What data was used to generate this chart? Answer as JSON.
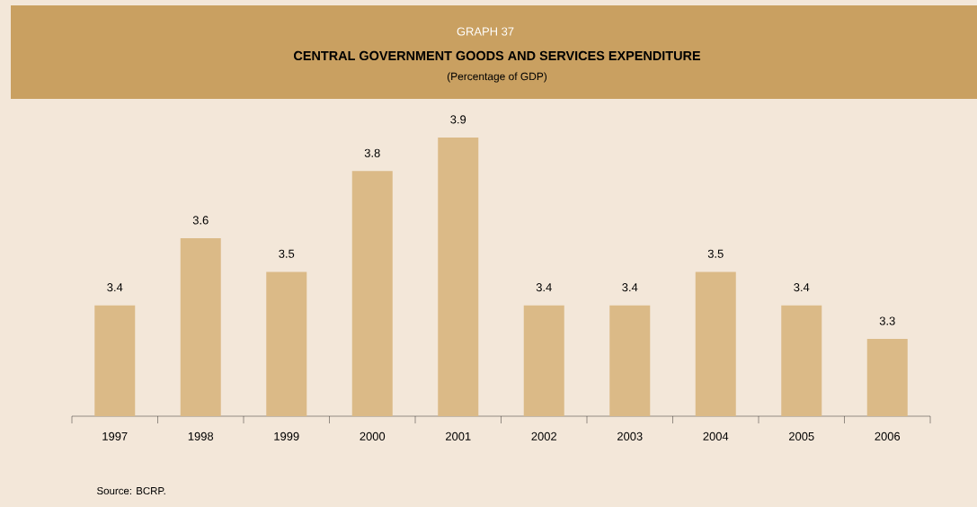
{
  "chart_data": {
    "type": "bar",
    "title": "CENTRAL GOVERNMENT GOODS AND SERVICES EXPENDITURE",
    "subtitle": "(Percentage of GDP)",
    "annotations": [
      "GRAPH 37",
      "Source: BCRP."
    ],
    "categories": [
      "1997",
      "1998",
      "1999",
      "2000",
      "2001",
      "2002",
      "2003",
      "2004",
      "2005",
      "2006"
    ],
    "values": [
      3.4,
      3.6,
      3.5,
      3.8,
      3.9,
      3.4,
      3.4,
      3.5,
      3.4,
      3.3
    ],
    "color": "#dbba87",
    "data_labels": true,
    "ylim": [
      3.07,
      3.9
    ]
  }
}
